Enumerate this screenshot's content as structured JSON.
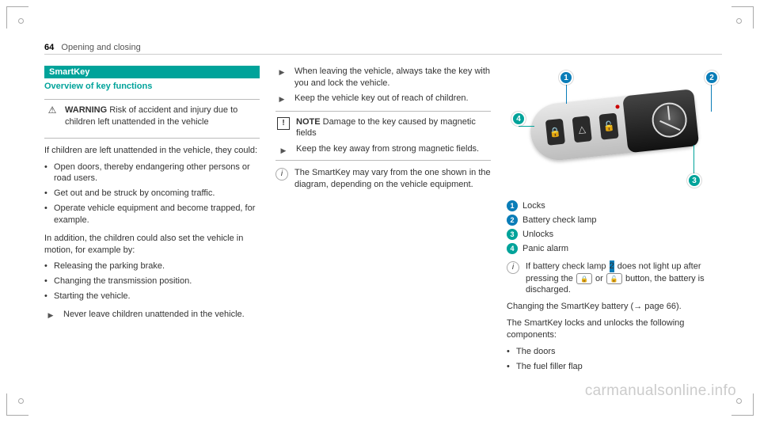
{
  "page": {
    "number": "64",
    "chapter": "Opening and closing"
  },
  "col1": {
    "sectionBar": "SmartKey",
    "subTitle": "Overview of key functions",
    "warning": {
      "label": "WARNING",
      "text": "Risk of accident and injury due to children left unattended in the vehicle"
    },
    "p1": "If children are left unattended in the vehicle, they could:",
    "list1": [
      "Open doors, thereby endangering other persons or road users.",
      "Get out and be struck by oncoming traffic.",
      "Operate vehicle equipment and become trapped, for example."
    ],
    "p2": "In addition, the children could also set the vehicle in motion, for example by:",
    "list2": [
      "Releasing the parking brake.",
      "Changing the transmission position.",
      "Starting the vehicle."
    ],
    "step1": "Never leave children unattended in the vehicle."
  },
  "col2": {
    "steps": [
      "When leaving the vehicle, always take the key with you and lock the vehicle.",
      "Keep the vehicle key out of reach of children."
    ],
    "note": {
      "label": "NOTE",
      "text": "Damage to the key caused by magnetic fields"
    },
    "noteStep": "Keep the key away from strong magnetic fields.",
    "info": "The SmartKey may vary from the one shown in the diagram, depending on the vehicle equipment."
  },
  "col3": {
    "legend": {
      "1": "Locks",
      "2": "Battery check lamp",
      "3": "Unlocks",
      "4": "Panic alarm"
    },
    "info": {
      "pre": "If battery check lamp ",
      "mid": " does not light up after pressing the ",
      "mid2": " or ",
      "post": " button, the battery is discharged."
    },
    "p1": "Changing the SmartKey battery (→ page 66).",
    "p2": "The SmartKey locks and unlocks the following components:",
    "list": [
      "The doors",
      "The fuel filler flap"
    ]
  },
  "watermark": "carmanualsonline.info",
  "colors": {
    "teal": "#00a39a",
    "blue": "#0a7db8"
  }
}
